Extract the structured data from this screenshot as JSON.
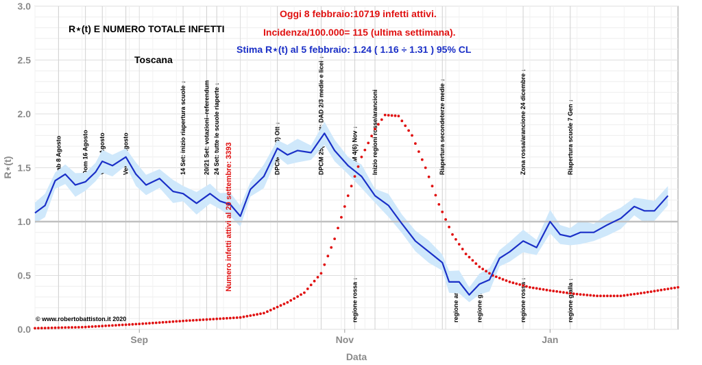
{
  "colors": {
    "rt_line": "#1a2fc7",
    "rt_band": "#cfe8fb",
    "infetti": "#e01010",
    "header_red": "#e01010",
    "header_blue": "#1a2fc7",
    "grid": "#dddddd",
    "ref_line": "#c0c0c0"
  },
  "header": {
    "title": "R⋆(t) E NUMERO TOTALE INFETTI",
    "region": "Toscana",
    "oggi": "Oggi 8 febbraio:10719 infetti attivi.",
    "incidenza": "Incidenza/100.000= 115 (ultima settimana).",
    "stima": "Stima R⋆(t) al 5 febbraio: 1.24 ( 1.16 ÷ 1.31 ) 95% CL",
    "copyright": "© www.robertobattiston.it 2020",
    "infetti_label": "Numero infetti attivi al 20 settembre: 3393"
  },
  "chart_data": {
    "type": "line",
    "xlabel": "Data",
    "ylabel": "R⋆(t)",
    "xlim": [
      "2020-08-01",
      "2021-02-08"
    ],
    "ylim": [
      0.0,
      3.0
    ],
    "x_ticks": [
      {
        "date": "2020-09-01",
        "label": "Sep"
      },
      {
        "date": "2020-11-01",
        "label": "Nov"
      },
      {
        "date": "2021-01-01",
        "label": "Jan"
      }
    ],
    "y_ticks": [
      "0.0",
      "0.5",
      "1.0",
      "1.5",
      "2.0",
      "2.5",
      "3.0"
    ],
    "reference_line": 1.0,
    "grid": true,
    "series": [
      {
        "name": "R⋆(t)",
        "kind": "line_with_band",
        "points": [
          [
            "2020-08-01",
            1.08
          ],
          [
            "2020-08-04",
            1.15
          ],
          [
            "2020-08-07",
            1.38
          ],
          [
            "2020-08-10",
            1.44
          ],
          [
            "2020-08-13",
            1.34
          ],
          [
            "2020-08-16",
            1.37
          ],
          [
            "2020-08-19",
            1.46
          ],
          [
            "2020-08-21",
            1.56
          ],
          [
            "2020-08-24",
            1.52
          ],
          [
            "2020-08-28",
            1.6
          ],
          [
            "2020-08-31",
            1.44
          ],
          [
            "2020-09-03",
            1.34
          ],
          [
            "2020-09-07",
            1.4
          ],
          [
            "2020-09-11",
            1.28
          ],
          [
            "2020-09-14",
            1.26
          ],
          [
            "2020-09-18",
            1.17
          ],
          [
            "2020-09-22",
            1.26
          ],
          [
            "2020-09-25",
            1.19
          ],
          [
            "2020-09-28",
            1.16
          ],
          [
            "2020-10-01",
            1.05
          ],
          [
            "2020-10-04",
            1.3
          ],
          [
            "2020-10-08",
            1.42
          ],
          [
            "2020-10-12",
            1.68
          ],
          [
            "2020-10-15",
            1.62
          ],
          [
            "2020-10-18",
            1.66
          ],
          [
            "2020-10-22",
            1.64
          ],
          [
            "2020-10-26",
            1.82
          ],
          [
            "2020-10-29",
            1.66
          ],
          [
            "2020-11-02",
            1.52
          ],
          [
            "2020-11-06",
            1.42
          ],
          [
            "2020-11-10",
            1.24
          ],
          [
            "2020-11-14",
            1.15
          ],
          [
            "2020-11-18",
            0.98
          ],
          [
            "2020-11-22",
            0.82
          ],
          [
            "2020-11-26",
            0.72
          ],
          [
            "2020-11-30",
            0.62
          ],
          [
            "2020-12-02",
            0.44
          ],
          [
            "2020-12-05",
            0.44
          ],
          [
            "2020-12-08",
            0.32
          ],
          [
            "2020-12-11",
            0.42
          ],
          [
            "2020-12-14",
            0.46
          ],
          [
            "2020-12-17",
            0.66
          ],
          [
            "2020-12-20",
            0.72
          ],
          [
            "2020-12-24",
            0.82
          ],
          [
            "2020-12-28",
            0.76
          ],
          [
            "2021-01-01",
            1.0
          ],
          [
            "2021-01-04",
            0.88
          ],
          [
            "2021-01-07",
            0.86
          ],
          [
            "2021-01-10",
            0.9
          ],
          [
            "2021-01-14",
            0.9
          ],
          [
            "2021-01-18",
            0.97
          ],
          [
            "2021-01-22",
            1.03
          ],
          [
            "2021-01-26",
            1.14
          ],
          [
            "2021-01-29",
            1.1
          ],
          [
            "2021-02-01",
            1.1
          ],
          [
            "2021-02-05",
            1.24
          ]
        ]
      },
      {
        "name": "Numero infetti attivi",
        "kind": "dots",
        "note": "values in R⋆(t) axis units (normalized display scale)",
        "points": [
          [
            "2020-08-01",
            0.01
          ],
          [
            "2020-08-15",
            0.02
          ],
          [
            "2020-09-01",
            0.05
          ],
          [
            "2020-09-15",
            0.08
          ],
          [
            "2020-10-01",
            0.11
          ],
          [
            "2020-10-08",
            0.15
          ],
          [
            "2020-10-15",
            0.25
          ],
          [
            "2020-10-20",
            0.34
          ],
          [
            "2020-10-25",
            0.52
          ],
          [
            "2020-10-29",
            0.84
          ],
          [
            "2020-11-02",
            1.24
          ],
          [
            "2020-11-06",
            1.6
          ],
          [
            "2020-11-10",
            1.86
          ],
          [
            "2020-11-13",
            1.99
          ],
          [
            "2020-11-17",
            1.98
          ],
          [
            "2020-11-21",
            1.8
          ],
          [
            "2020-11-25",
            1.5
          ],
          [
            "2020-11-29",
            1.16
          ],
          [
            "2020-12-03",
            0.88
          ],
          [
            "2020-12-07",
            0.7
          ],
          [
            "2020-12-11",
            0.58
          ],
          [
            "2020-12-15",
            0.5
          ],
          [
            "2020-12-20",
            0.44
          ],
          [
            "2020-12-26",
            0.39
          ],
          [
            "2021-01-01",
            0.36
          ],
          [
            "2021-01-08",
            0.33
          ],
          [
            "2021-01-15",
            0.31
          ],
          [
            "2021-01-22",
            0.31
          ],
          [
            "2021-01-29",
            0.34
          ],
          [
            "2021-02-04",
            0.37
          ],
          [
            "2021-02-08",
            0.39
          ]
        ]
      }
    ],
    "event_lines": [
      {
        "date": "2020-08-08",
        "label": "Sab 8 Agosto"
      },
      {
        "date": "2020-08-16",
        "label": "Dom 16 Agosto"
      },
      {
        "date": "2020-08-21",
        "label": "Ven 21 Agosto"
      },
      {
        "date": "2020-08-28",
        "label": "Ven 28 Agosto"
      },
      {
        "date": "2020-09-14",
        "label": "14 Set: inizio riapertura scuole ↓"
      },
      {
        "date": "2020-09-21",
        "label": "20/21 Set: votazioni–referendum"
      },
      {
        "date": "2020-09-24",
        "label": "24 Set: tutte le scuole riaperte  ↓"
      },
      {
        "date": "2020-10-12",
        "label": "DPCM 12(13) Ott  ↓"
      },
      {
        "date": "2020-10-25",
        "label": "DPCM 25(26) Ott: DAD 2/3 medie e licei  ↓"
      },
      {
        "date": "2020-11-04",
        "label": "DPCM 4(6) Nov  ↓"
      },
      {
        "date": "2020-11-10",
        "label": "Inizio regioni rosse/arancioni"
      },
      {
        "date": "2020-11-30",
        "label": "Riapertura secondeterze medie  ↓"
      },
      {
        "date": "2020-12-24",
        "label": "Zona rossa/arancione 24 dicembre  ↓"
      },
      {
        "date": "2021-01-07",
        "label": "Riapertura scuole 7 Gen  ↓"
      }
    ],
    "zone_labels": [
      {
        "date": "2020-11-04",
        "label": "regione rossa ↓"
      },
      {
        "date": "2020-12-04",
        "label": "regione arancio ↓"
      },
      {
        "date": "2020-12-11",
        "label": "regione gialla ↓"
      },
      {
        "date": "2020-12-24",
        "label": "regione rossa ↓"
      },
      {
        "date": "2021-01-07",
        "label": "regione gialla ↓"
      }
    ]
  }
}
